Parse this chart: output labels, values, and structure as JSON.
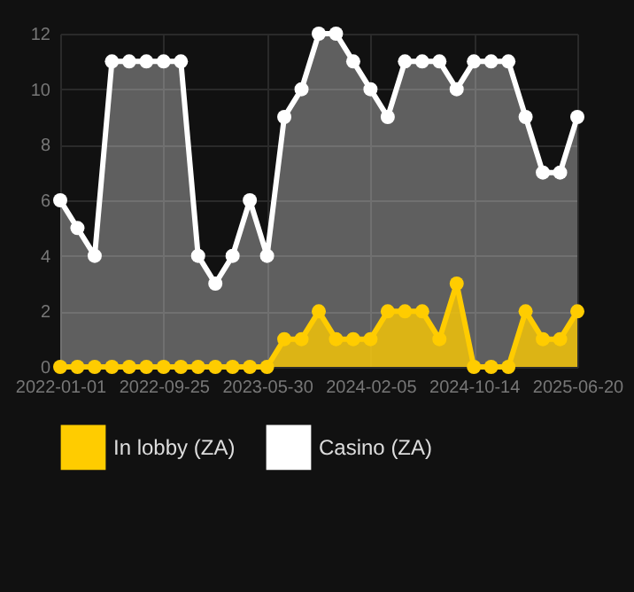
{
  "chart_data": {
    "type": "area",
    "categories": [
      "2022-01-01",
      null,
      null,
      null,
      null,
      null,
      "2022-09-25",
      null,
      null,
      null,
      null,
      null,
      "2023-05-30",
      null,
      null,
      null,
      null,
      null,
      "2024-02-05",
      null,
      null,
      null,
      null,
      null,
      "2024-10-14",
      null,
      null,
      null,
      null,
      null,
      "2025-06-20"
    ],
    "series": [
      {
        "name": "In lobby (ZA)",
        "color": "#ffcc00",
        "values": [
          0,
          0,
          0,
          0,
          0,
          0,
          0,
          0,
          0,
          0,
          0,
          0,
          0,
          1,
          1,
          2,
          1,
          1,
          1,
          2,
          2,
          2,
          1,
          3,
          0,
          0,
          0,
          2,
          1,
          1,
          2
        ]
      },
      {
        "name": "Casino (ZA)",
        "color": "#ffffff",
        "values": [
          6,
          5,
          4,
          11,
          11,
          11,
          11,
          11,
          4,
          3,
          4,
          6,
          4,
          9,
          10,
          12,
          12,
          11,
          10,
          9,
          11,
          11,
          11,
          10,
          11,
          11,
          11,
          9,
          7,
          7,
          9
        ]
      }
    ],
    "ylim": [
      0,
      12
    ],
    "yticks": [
      0,
      2,
      4,
      6,
      8,
      10,
      12
    ],
    "grid": true,
    "legend": "bottom",
    "marker": "circle"
  }
}
